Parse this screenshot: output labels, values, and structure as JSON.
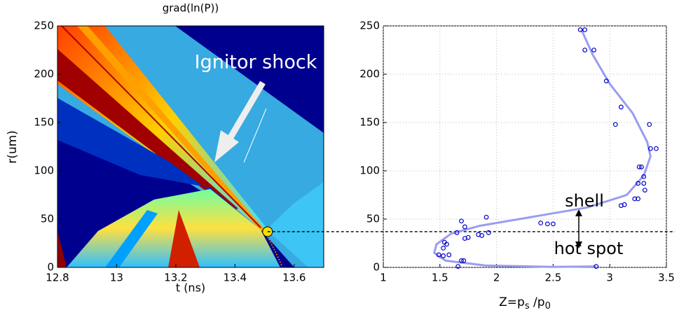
{
  "chart_data": [
    {
      "type": "heatmap",
      "title": "grad(ln(P))",
      "xlabel": "t (ns)",
      "ylabel": "r(um)",
      "xlim": [
        12.8,
        13.7
      ],
      "xticks": [
        12.8,
        13,
        13.2,
        13.4,
        13.6
      ],
      "ylim": [
        0,
        250
      ],
      "yticks": [
        0,
        50,
        100,
        150,
        200,
        250
      ],
      "annotation": "Ignitor shock",
      "marker": [
        13.51,
        37
      ],
      "marker_color": "#f5e000"
    },
    {
      "type": "scatter",
      "xlabel_parts": [
        "Z=p",
        "s",
        " /p",
        "0"
      ],
      "xlim": [
        1,
        3.5
      ],
      "xticks": [
        1,
        1.5,
        2,
        2.5,
        3,
        3.5
      ],
      "ylim": [
        0,
        250
      ],
      "yticks": [
        0,
        50,
        100,
        150,
        200,
        250
      ],
      "grid": true,
      "hline": 37,
      "annotations": [
        "shell",
        "hot spot"
      ],
      "points": {
        "color": "#0000cc",
        "x": [
          2.74,
          2.78,
          2.78,
          2.86,
          2.97,
          3.1,
          3.05,
          3.35,
          3.36,
          3.41,
          3.26,
          3.28,
          3.3,
          3.25,
          3.3,
          3.31,
          3.22,
          3.25,
          3.1,
          3.13,
          1.91,
          1.69,
          2.39,
          2.45,
          2.5,
          1.72,
          1.65,
          1.93,
          1.84,
          1.87,
          1.72,
          1.75,
          1.54,
          1.56,
          1.53,
          1.58,
          1.53,
          1.49,
          1.71,
          1.69,
          1.66,
          2.88
        ],
        "y": [
          246,
          246,
          225,
          225,
          193,
          166,
          148,
          148,
          123,
          123,
          104,
          104,
          94,
          87,
          87,
          80,
          71,
          71,
          64,
          65,
          52,
          48,
          46,
          45,
          45,
          42,
          36,
          36,
          34,
          33,
          30,
          31,
          26,
          24,
          20,
          13,
          12,
          13,
          7,
          7,
          1,
          1
        ]
      },
      "fit": {
        "color": "#9a9cf0",
        "x": [
          2.75,
          2.85,
          3.0,
          3.2,
          3.33,
          3.36,
          3.3,
          3.15,
          2.8,
          2.3,
          1.85,
          1.6,
          1.47,
          1.45,
          1.55,
          1.9,
          2.5,
          2.88
        ],
        "y": [
          246,
          220,
          190,
          160,
          130,
          115,
          95,
          75,
          62,
          52,
          43,
          35,
          24,
          15,
          7,
          2,
          0.5,
          1
        ]
      }
    }
  ]
}
